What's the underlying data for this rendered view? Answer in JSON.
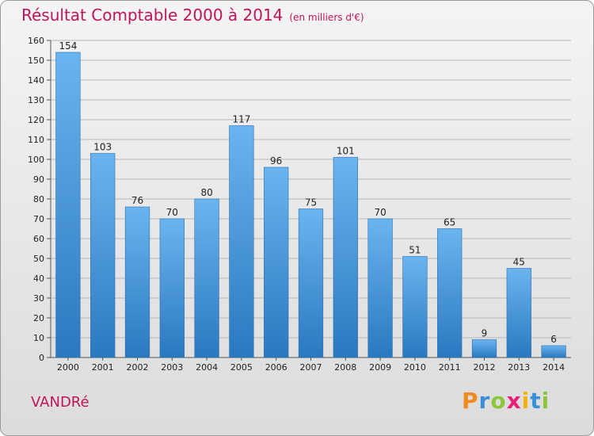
{
  "title": "Résultat Comptable 2000 à 2014",
  "unit_label": "(en milliers d'€)",
  "place": "VANDRé",
  "brand": {
    "letters": [
      "P",
      "r",
      "o",
      "x",
      "i",
      "t",
      "i"
    ],
    "colors": [
      "#f08a1c",
      "#3a8fd8",
      "#8cc63f",
      "#e8207a",
      "#f6b000",
      "#3a8fd8",
      "#8cc63f"
    ]
  },
  "colors": {
    "bar": "#3d8fd6",
    "bar_light": "#6ab5ef",
    "title": "#c0145a",
    "grid": "#b8b8b8"
  },
  "chart_data": {
    "type": "bar",
    "title": "Résultat Comptable 2000 à 2014",
    "ylabel": "(en milliers d'€)",
    "xlabel": "",
    "categories": [
      "2000",
      "2001",
      "2002",
      "2003",
      "2004",
      "2005",
      "2006",
      "2007",
      "2008",
      "2009",
      "2010",
      "2011",
      "2012",
      "2013",
      "2014"
    ],
    "values": [
      154,
      103,
      76,
      70,
      80,
      117,
      96,
      75,
      101,
      70,
      51,
      65,
      9,
      45,
      6
    ],
    "ylim": [
      0,
      160
    ],
    "yticks": [
      0,
      10,
      20,
      30,
      40,
      50,
      60,
      70,
      80,
      90,
      100,
      110,
      120,
      130,
      140,
      150,
      160
    ],
    "grid": true,
    "legend": "none"
  }
}
